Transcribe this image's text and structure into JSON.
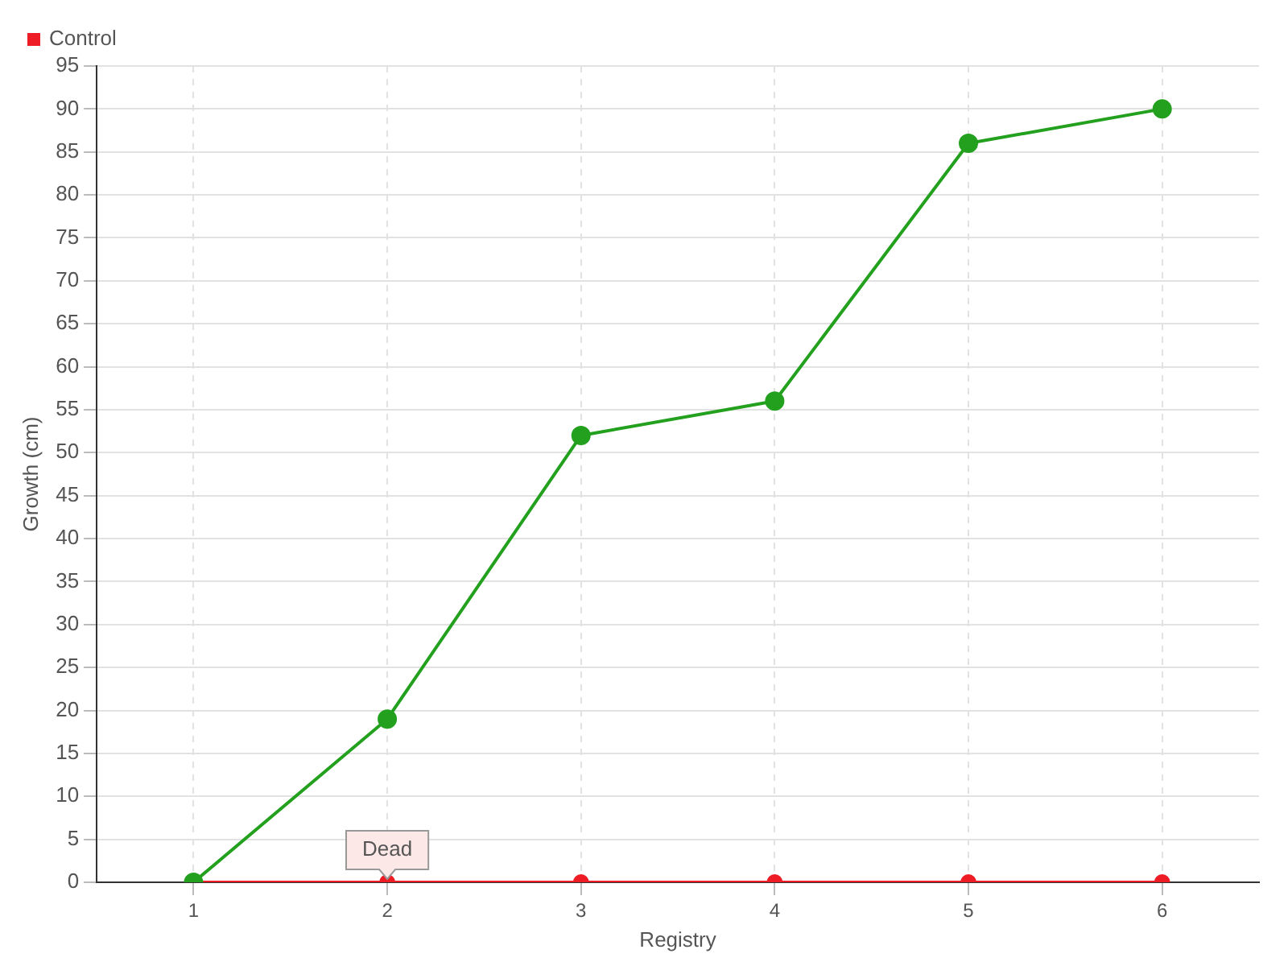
{
  "chart_data": {
    "type": "line",
    "xlabel": "Registry",
    "ylabel": "Growth (cm)",
    "categories": [
      "1",
      "2",
      "3",
      "4",
      "5",
      "6"
    ],
    "series": [
      {
        "color": "#22a01e",
        "values": [
          0,
          19,
          52,
          56,
          86,
          90
        ]
      },
      {
        "name": "Control",
        "color": "#ee1c24",
        "values": [
          0,
          0,
          0,
          0,
          0,
          0
        ]
      }
    ],
    "ylim": [
      0,
      95
    ],
    "yticks": [
      0,
      5,
      10,
      15,
      20,
      25,
      30,
      35,
      40,
      45,
      50,
      55,
      60,
      65,
      70,
      75,
      80,
      85,
      90,
      95
    ],
    "grid": true,
    "legend": "top left",
    "marker": "circle",
    "line_style": "solid",
    "annotations": [
      {
        "text": "Dead",
        "x": "2",
        "y": 0
      }
    ]
  }
}
